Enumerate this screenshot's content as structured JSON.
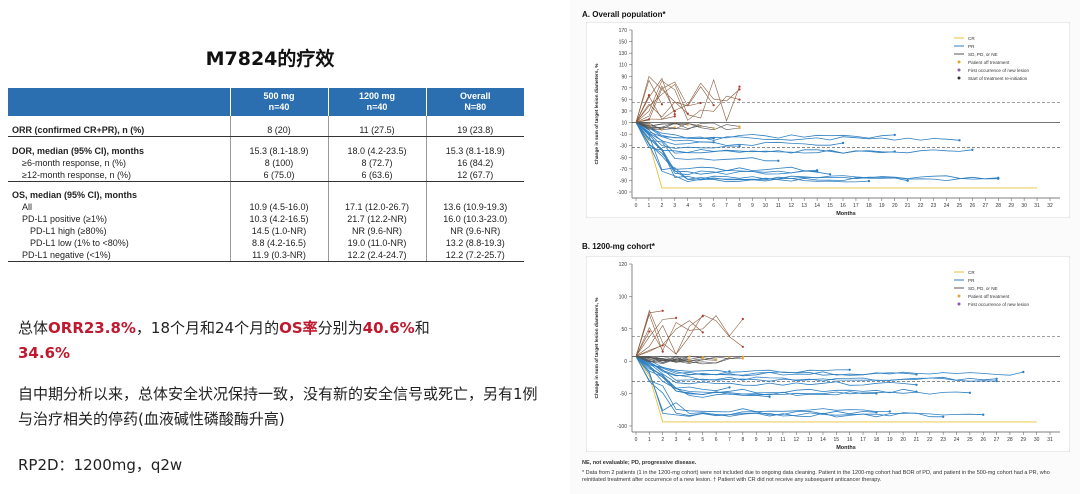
{
  "slide_title": "M7824的疗效",
  "table": {
    "header": [
      {
        "line1": "500 mg",
        "line2": "n=40"
      },
      {
        "line1": "1200 mg",
        "line2": "n=40"
      },
      {
        "line1": "Overall",
        "line2": "N=80"
      }
    ],
    "rows": [
      {
        "label": "ORR (confirmed CR+PR), n (%)",
        "v": [
          "8 (20)",
          "11 (27.5)",
          "19 (23.8)"
        ]
      },
      {
        "label": "DOR, median (95% CI), months",
        "v": [
          "15.3 (8.1-18.9)",
          "18.0 (4.2-23.5)",
          "15.3 (8.1-18.9)"
        ]
      },
      {
        "label": "≥6-month response, n (%)",
        "v": [
          "8 (100)",
          "8 (72.7)",
          "16 (84.2)"
        ]
      },
      {
        "label": "≥12-month response, n (%)",
        "v": [
          "6 (75.0)",
          "6 (63.6)",
          "12 (67.7)"
        ]
      },
      {
        "label": "OS, median (95% CI), months",
        "v": [
          "",
          "",
          ""
        ]
      },
      {
        "label": "All",
        "v": [
          "10.9 (4.5-16.0)",
          "17.1 (12.0-26.7)",
          "13.6 (10.9-19.3)"
        ]
      },
      {
        "label": "PD-L1 positive (≥1%)",
        "v": [
          "10.3 (4.2-16.5)",
          "21.7 (12.2-NR)",
          "16.0 (10.3-23.0)"
        ]
      },
      {
        "label": "PD-L1 high (≥80%)",
        "v": [
          "14.5 (1.0-NR)",
          "NR (9.6-NR)",
          "NR (9.6-NR)"
        ]
      },
      {
        "label": "PD-L1 low (1% to <80%)",
        "v": [
          "8.8 (4.2-16.5)",
          "19.0 (11.0-NR)",
          "13.2 (8.8-19.3)"
        ]
      },
      {
        "label": "PD-L1 negative (<1%)",
        "v": [
          "11.9 (0.3-NR)",
          "12.2 (2.4-24.7)",
          "12.2 (7.2-25.7)"
        ]
      }
    ]
  },
  "summary": {
    "p1": "总体",
    "orr": "ORR23.8%",
    "p2": "，18个月和24个月的",
    "os": "OS率",
    "p3": "分别为",
    "v1": "40.6%",
    "p4": "和",
    "v2": "34.6%"
  },
  "safety_note": "自中期分析以来，总体安全状况保持一致，没有新的安全信号或死亡，另有1例与治疗相关的停药(血液碱性磷酸酶升高)",
  "rp2d": "RP2D：1200mg，q2w",
  "charts": [
    {
      "title": "A. Overall population*",
      "ylabel": "Change in sum of target lesion diameters, %",
      "xlabel": "Months",
      "yticks": [
        "170",
        "150",
        "130",
        "110",
        "90",
        "70",
        "50",
        "30",
        "10",
        "-10",
        "-30",
        "-50",
        "-70",
        "-90",
        "-100"
      ],
      "xticks": [
        "0",
        "1",
        "2",
        "3",
        "4",
        "5",
        "6",
        "7",
        "8",
        "9",
        "10",
        "11",
        "12",
        "13",
        "14",
        "15",
        "16",
        "17",
        "18",
        "19",
        "20",
        "21",
        "22",
        "23",
        "24",
        "25",
        "26",
        "27",
        "28",
        "29",
        "30",
        "31",
        "32"
      ],
      "legend": [
        "CR",
        "PR",
        "SD, PD, or NE",
        "Patient off treatment",
        "First occurrence of new lesion",
        "Start of treatment re-initiation"
      ]
    },
    {
      "title": "B. 1200-mg cohort*",
      "ylabel": "Change in sum of target lesion diameters, %",
      "xlabel": "Months",
      "yticks": [
        "120",
        "100",
        "50",
        "0",
        "-50",
        "-100"
      ],
      "xticks": [
        "0",
        "1",
        "2",
        "3",
        "4",
        "5",
        "6",
        "7",
        "8",
        "9",
        "10",
        "11",
        "12",
        "13",
        "14",
        "15",
        "16",
        "17",
        "18",
        "19",
        "20",
        "21",
        "22",
        "23",
        "24",
        "25",
        "26",
        "27",
        "28",
        "29",
        "30",
        "31"
      ],
      "legend": [
        "CR",
        "PR",
        "SD, PD, or NE",
        "Patient off treatment",
        "First occurrence of new lesion"
      ]
    }
  ],
  "footnote_1": "NE, not evaluable; PD, progressive disease.",
  "footnote_2": "* Data from 2 patients (1 in the 1200-mg cohort) were not included due to ongoing data cleaning. Patient in the 1200-mg cohort had BOR of PD, and patient in the 500-mg cohort had a PR, who reinitiated treatment after occurrence of a new lesion. † Patient with CR did not receive any subsequent anticancer therapy.",
  "colors": {
    "table_header": "#2c6fb0",
    "highlight_red": "#c0182e",
    "cr": "#e8c23a",
    "pr": "#2e7fc1",
    "sd": "#555555",
    "off_treatment": "#e8a23a",
    "new_lesion": "#8a5aa8",
    "reinit": "#333333"
  }
}
